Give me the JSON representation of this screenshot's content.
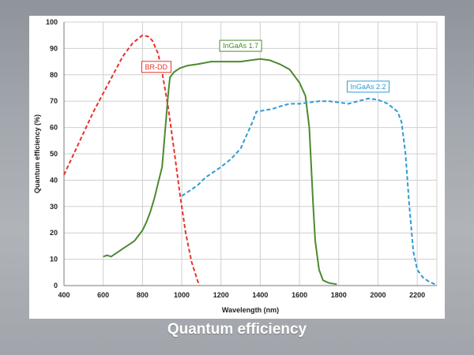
{
  "caption": "Quantum efficiency",
  "chart_data": {
    "type": "line",
    "title": "",
    "xlabel": "Wavelength (nm)",
    "ylabel": "Quantum efficiency (%)",
    "xlim": [
      400,
      2300
    ],
    "ylim": [
      0,
      100
    ],
    "xticks": [
      400,
      600,
      800,
      1000,
      1200,
      1400,
      1600,
      1800,
      2000,
      2200
    ],
    "yticks": [
      0,
      10,
      20,
      30,
      40,
      50,
      60,
      70,
      80,
      90,
      100
    ],
    "grid": true,
    "series": [
      {
        "name": "BR-DD",
        "color": "#e8322a",
        "dash": "dashed",
        "points": [
          [
            400,
            42
          ],
          [
            450,
            50
          ],
          [
            500,
            58
          ],
          [
            550,
            66
          ],
          [
            600,
            73
          ],
          [
            650,
            80
          ],
          [
            700,
            87
          ],
          [
            750,
            92
          ],
          [
            800,
            95
          ],
          [
            830,
            94.5
          ],
          [
            850,
            93
          ],
          [
            880,
            88
          ],
          [
            900,
            81
          ],
          [
            930,
            68
          ],
          [
            960,
            52
          ],
          [
            990,
            35
          ],
          [
            1020,
            20
          ],
          [
            1050,
            9
          ],
          [
            1080,
            2
          ],
          [
            1090,
            0
          ]
        ]
      },
      {
        "name": "InGaAs 1.7",
        "color": "#4c8a2e",
        "dash": "solid",
        "points": [
          [
            600,
            11
          ],
          [
            620,
            11.5
          ],
          [
            640,
            11
          ],
          [
            660,
            12
          ],
          [
            680,
            13
          ],
          [
            700,
            14
          ],
          [
            720,
            15
          ],
          [
            740,
            16
          ],
          [
            760,
            17
          ],
          [
            780,
            19
          ],
          [
            800,
            21
          ],
          [
            820,
            24
          ],
          [
            840,
            28
          ],
          [
            860,
            33
          ],
          [
            880,
            39
          ],
          [
            900,
            45
          ],
          [
            910,
            54
          ],
          [
            920,
            63
          ],
          [
            930,
            72
          ],
          [
            940,
            79
          ],
          [
            960,
            81
          ],
          [
            990,
            82.5
          ],
          [
            1030,
            83.5
          ],
          [
            1080,
            84
          ],
          [
            1150,
            85
          ],
          [
            1250,
            85
          ],
          [
            1300,
            85
          ],
          [
            1350,
            85.5
          ],
          [
            1400,
            86
          ],
          [
            1450,
            85.5
          ],
          [
            1500,
            84
          ],
          [
            1550,
            82
          ],
          [
            1600,
            77
          ],
          [
            1630,
            72
          ],
          [
            1650,
            60
          ],
          [
            1660,
            45
          ],
          [
            1670,
            30
          ],
          [
            1680,
            17
          ],
          [
            1700,
            6
          ],
          [
            1720,
            2
          ],
          [
            1750,
            1
          ],
          [
            1790,
            0.5
          ]
        ]
      },
      {
        "name": "InGaAs 2.2",
        "color": "#2f9ad3",
        "dash": "dashed",
        "points": [
          [
            1000,
            34
          ],
          [
            1040,
            36
          ],
          [
            1080,
            38
          ],
          [
            1120,
            41
          ],
          [
            1160,
            43
          ],
          [
            1200,
            45
          ],
          [
            1250,
            48
          ],
          [
            1300,
            52
          ],
          [
            1330,
            57
          ],
          [
            1360,
            62
          ],
          [
            1380,
            66
          ],
          [
            1420,
            66.5
          ],
          [
            1460,
            67
          ],
          [
            1500,
            68
          ],
          [
            1550,
            69
          ],
          [
            1600,
            69
          ],
          [
            1650,
            69.5
          ],
          [
            1700,
            70
          ],
          [
            1750,
            70
          ],
          [
            1800,
            69.5
          ],
          [
            1850,
            69
          ],
          [
            1900,
            70
          ],
          [
            1950,
            71
          ],
          [
            2000,
            70.5
          ],
          [
            2050,
            69
          ],
          [
            2100,
            66
          ],
          [
            2120,
            62
          ],
          [
            2140,
            50
          ],
          [
            2160,
            30
          ],
          [
            2180,
            13
          ],
          [
            2200,
            6
          ],
          [
            2230,
            3
          ],
          [
            2260,
            1.5
          ],
          [
            2290,
            0.5
          ]
        ]
      }
    ],
    "annotations": [
      {
        "text": "BR-DD",
        "series": "BR-DD",
        "x": 870,
        "y": 83,
        "color": "#e8322a"
      },
      {
        "text": "InGaAs 1.7",
        "series": "InGaAs 1.7",
        "x": 1300,
        "y": 91,
        "color": "#4c8a2e"
      },
      {
        "text": "InGaAs 2.2",
        "series": "InGaAs 2.2",
        "x": 1950,
        "y": 75.5,
        "color": "#2f9ad3"
      }
    ]
  }
}
